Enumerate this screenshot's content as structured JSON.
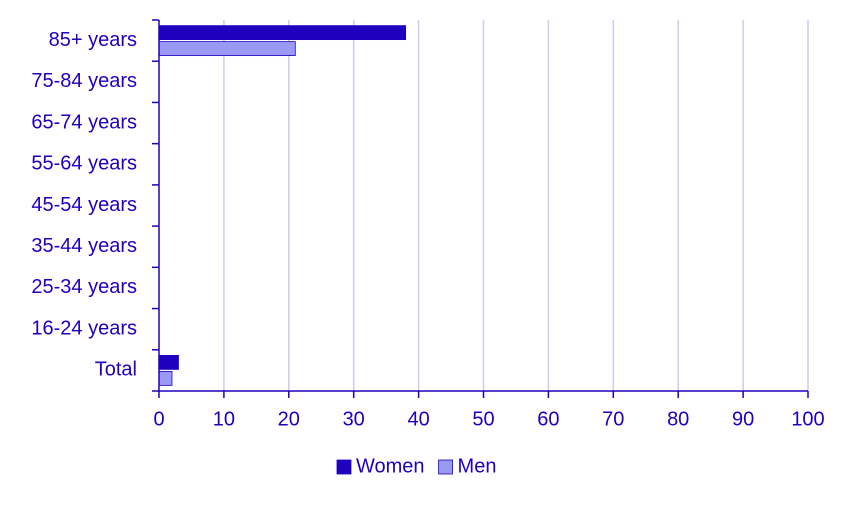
{
  "chart_data": {
    "type": "hbar",
    "categories": [
      "85+ years",
      "75-84 years",
      "65-74 years",
      "55-64 years",
      "45-54 years",
      "35-44 years",
      "25-34 years",
      "16-24 years",
      "Total"
    ],
    "series": [
      {
        "name": "Women",
        "color": "#1e00be",
        "values": [
          38,
          0,
          0,
          0,
          0,
          0,
          0,
          0,
          3
        ]
      },
      {
        "name": "Men",
        "color": "#9a9af5",
        "values": [
          21,
          0,
          0,
          0,
          0,
          0,
          0,
          0,
          2
        ]
      }
    ],
    "xlim": [
      0,
      100
    ],
    "xticks": [
      0,
      10,
      20,
      30,
      40,
      50,
      60,
      70,
      80,
      90,
      100
    ],
    "grid": true,
    "legend": "bottom"
  }
}
